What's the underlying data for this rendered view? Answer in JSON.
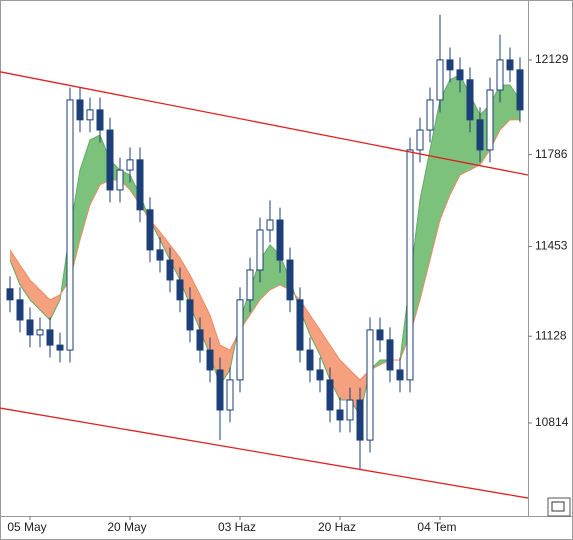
{
  "chart_data": {
    "type": "candlestick",
    "categories": [
      null,
      null,
      "05 May",
      null,
      null,
      null,
      null,
      null,
      null,
      null,
      null,
      null,
      "20 May",
      null,
      null,
      null,
      null,
      null,
      null,
      null,
      null,
      null,
      null,
      "03 Haz",
      null,
      null,
      null,
      null,
      null,
      null,
      null,
      null,
      null,
      "20 Haz",
      null,
      null,
      null,
      null,
      null,
      null,
      null,
      null,
      null,
      "04 Tem",
      null,
      null,
      null,
      null,
      null,
      null,
      null,
      null
    ],
    "open": [
      11300,
      11260,
      11187,
      11133,
      11151,
      11096,
      11078,
      11984,
      11912,
      11948,
      11875,
      11658,
      11730,
      11767,
      11586,
      11441,
      11404,
      11332,
      11260,
      11151,
      11078,
      11006,
      10861,
      10970,
      11260,
      11368,
      11513,
      11549,
      11404,
      11260,
      11078,
      11006,
      10970,
      10861,
      10825,
      10897,
      10752,
      11151,
      11115,
      11006,
      10970,
      11803,
      11875,
      11984,
      12129,
      12093,
      12057,
      11912,
      11803,
      12020,
      12129,
      12093
    ],
    "high": [
      11345,
      11305,
      11232,
      11196,
      11196,
      11141,
      12029,
      12029,
      11993,
      11993,
      11920,
      11775,
      11812,
      11812,
      11631,
      11486,
      11449,
      11377,
      11305,
      11196,
      11123,
      11051,
      11015,
      11305,
      11413,
      11558,
      11620,
      11594,
      11449,
      11305,
      11123,
      11051,
      11015,
      10906,
      10942,
      10942,
      11196,
      11196,
      11160,
      11051,
      11848,
      11920,
      12029,
      12292,
      12174,
      12138,
      12102,
      11957,
      12065,
      12220,
      12174,
      12138
    ],
    "low": [
      11215,
      11142,
      11088,
      11088,
      11051,
      11033,
      11033,
      11867,
      11867,
      11830,
      11613,
      11613,
      11685,
      11541,
      11396,
      11359,
      11287,
      11215,
      11106,
      11033,
      10961,
      10752,
      10816,
      10925,
      11215,
      11323,
      11468,
      11359,
      11215,
      11033,
      10961,
      10925,
      10816,
      10780,
      10780,
      10643,
      10707,
      11070,
      10961,
      10925,
      10925,
      11758,
      11830,
      11939,
      12048,
      12012,
      11867,
      11758,
      11758,
      11975,
      12048,
      11903
    ],
    "close": [
      11260,
      11187,
      11133,
      11151,
      11096,
      11078,
      11984,
      11912,
      11948,
      11875,
      11658,
      11730,
      11767,
      11586,
      11441,
      11404,
      11332,
      11260,
      11151,
      11078,
      11006,
      10861,
      10970,
      11260,
      11368,
      11513,
      11549,
      11404,
      11260,
      11078,
      11006,
      10970,
      10861,
      10825,
      10897,
      10752,
      11151,
      11115,
      11006,
      10970,
      11803,
      11875,
      11984,
      12129,
      12093,
      12057,
      11912,
      11803,
      12020,
      12129,
      12093,
      11948
    ],
    "up_color": "#ffffff",
    "down_color": "#1c3f78",
    "edge_color": "#1c3f78",
    "bands": [
      {
        "color": "#5fae5f",
        "values": [
          11404,
          11314,
          11260,
          11223,
          11187,
          11260,
          11513,
          11730,
          11839,
          11857,
          11767,
          11730,
          11712,
          11640,
          11549,
          11477,
          11404,
          11332,
          11241,
          11151,
          11060,
          10952,
          11006,
          11187,
          11296,
          11404,
          11459,
          11422,
          11332,
          11223,
          11133,
          11060,
          10970,
          10897,
          10897,
          10843,
          11006,
          11042,
          11042,
          11042,
          11332,
          11622,
          11803,
          11984,
          12057,
          12075,
          12002,
          11930,
          11966,
          12038,
          12038,
          11984
        ]
      },
      {
        "color": "#f08a62",
        "values": [
          11441,
          11386,
          11332,
          11296,
          11260,
          11278,
          11332,
          11477,
          11604,
          11676,
          11694,
          11694,
          11658,
          11604,
          11549,
          11506,
          11459,
          11412,
          11350,
          11278,
          11205,
          11096,
          11078,
          11151,
          11205,
          11260,
          11296,
          11314,
          11296,
          11260,
          11205,
          11151,
          11096,
          11042,
          11006,
          10970,
          11006,
          11024,
          11042,
          11042,
          11133,
          11260,
          11404,
          11549,
          11640,
          11712,
          11730,
          11749,
          11803,
          11875,
          11912,
          11912
        ]
      }
    ],
    "band_up_color": "#7cc17c",
    "band_down_color": "#f5a07e",
    "channels": [
      {
        "color": "#e02020",
        "x": [
          -1,
          51.8
        ],
        "values": [
          12086,
          11712
        ]
      },
      {
        "color": "#e02020",
        "x": [
          -1,
          51.8
        ],
        "values": [
          10868,
          10542
        ]
      }
    ],
    "ylim": [
      10477,
      12346
    ],
    "yticks": [
      10814,
      11128,
      11453,
      11786,
      12129
    ]
  }
}
